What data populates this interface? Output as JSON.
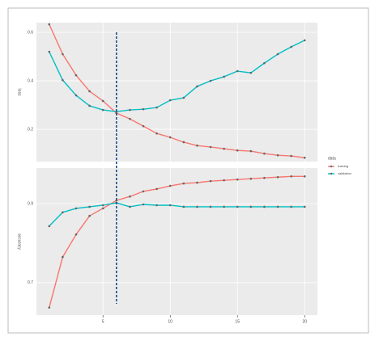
{
  "chart_data": [
    {
      "type": "line",
      "ylabel": "loss",
      "legend_title": "data",
      "vline": 6,
      "x": [
        1,
        2,
        3,
        4,
        5,
        6,
        7,
        8,
        9,
        10,
        11,
        12,
        13,
        14,
        15,
        16,
        17,
        18,
        19,
        20
      ],
      "xlim": [
        0.05,
        20.95
      ],
      "ylim": [
        0.067,
        0.64
      ],
      "yticks": [
        0.2,
        0.4,
        0.6
      ],
      "grid": true,
      "series": [
        {
          "name": "training",
          "color": "#F8766D",
          "values": [
            0.633,
            0.51,
            0.423,
            0.357,
            0.317,
            0.267,
            0.243,
            0.213,
            0.183,
            0.167,
            0.147,
            0.133,
            0.127,
            0.12,
            0.113,
            0.11,
            0.1,
            0.093,
            0.09,
            0.083
          ]
        },
        {
          "name": "validation",
          "color": "#00BFC4",
          "values": [
            0.52,
            0.403,
            0.34,
            0.297,
            0.28,
            0.273,
            0.28,
            0.283,
            0.29,
            0.32,
            0.33,
            0.377,
            0.4,
            0.417,
            0.44,
            0.433,
            0.473,
            0.51,
            0.54,
            0.567
          ]
        }
      ]
    },
    {
      "type": "line",
      "ylabel": "accuracy",
      "x": [
        1,
        2,
        3,
        4,
        5,
        6,
        7,
        8,
        9,
        10,
        11,
        12,
        13,
        14,
        15,
        16,
        17,
        18,
        19,
        20
      ],
      "xlim": [
        0.05,
        20.95
      ],
      "xticks": [
        5,
        10,
        15,
        20
      ],
      "ylim": [
        0.618,
        0.99
      ],
      "yticks": [
        0.7,
        0.9
      ],
      "grid": true,
      "series": [
        {
          "name": "training",
          "color": "#F8766D",
          "values": [
            0.637,
            0.765,
            0.822,
            0.869,
            0.888,
            0.908,
            0.918,
            0.931,
            0.937,
            0.945,
            0.951,
            0.953,
            0.957,
            0.959,
            0.961,
            0.963,
            0.965,
            0.967,
            0.969,
            0.969
          ]
        },
        {
          "name": "validation",
          "color": "#00BFC4",
          "values": [
            0.843,
            0.878,
            0.888,
            0.892,
            0.896,
            0.902,
            0.892,
            0.898,
            0.896,
            0.896,
            0.892,
            0.892,
            0.892,
            0.892,
            0.892,
            0.892,
            0.892,
            0.892,
            0.892,
            0.892
          ]
        }
      ]
    }
  ]
}
